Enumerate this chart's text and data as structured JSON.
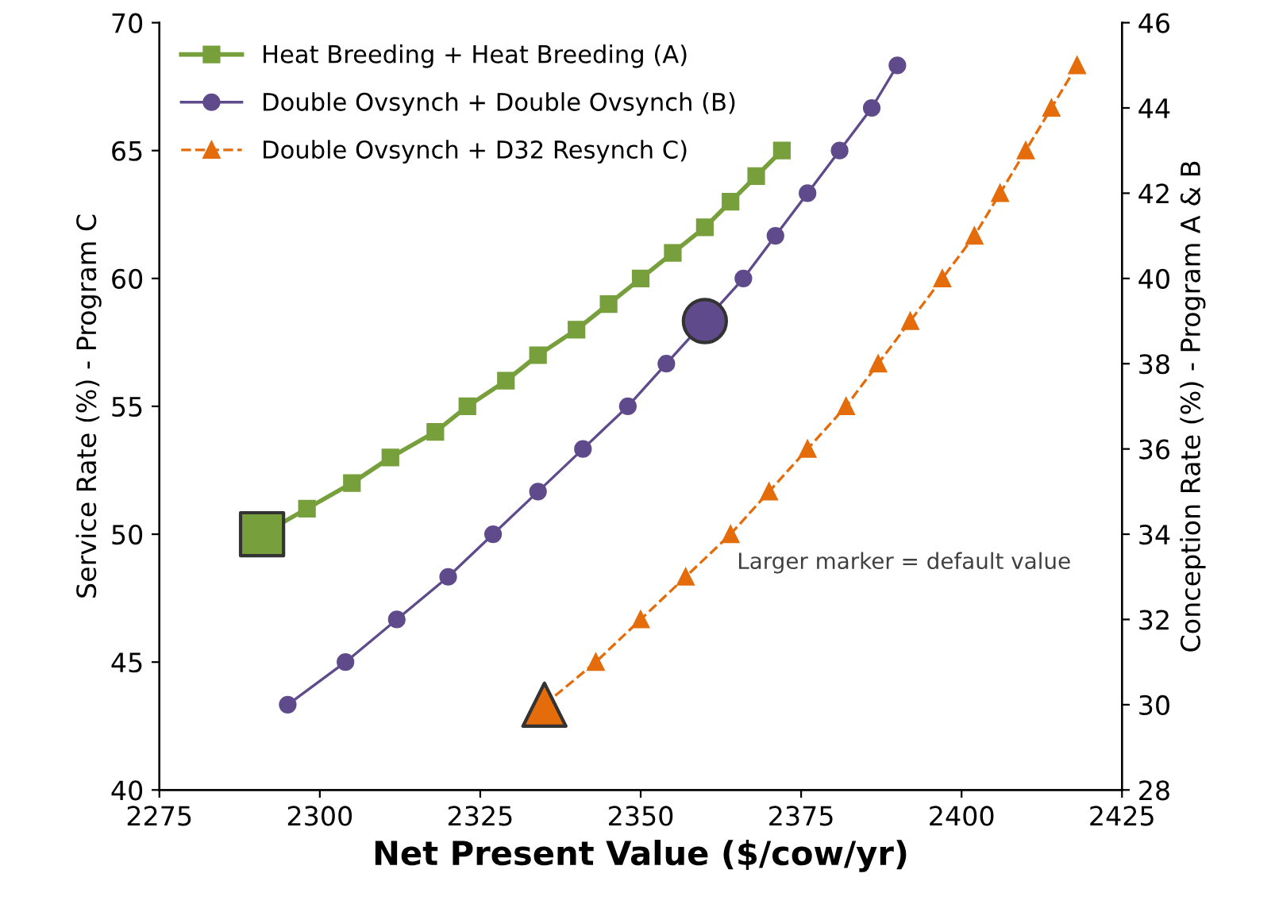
{
  "chart_data": {
    "type": "line",
    "xlabel": "Net Present Value ($/cow/yr)",
    "ylabel": "Service Rate (%) - Program C",
    "y2label": "Conception Rate (%) - Program A & B",
    "xlim": [
      2275,
      2425
    ],
    "xticks": [
      2275,
      2300,
      2325,
      2350,
      2375,
      2400,
      2425
    ],
    "ylim": [
      40,
      70
    ],
    "yticks": [
      40,
      45,
      50,
      55,
      60,
      65,
      70
    ],
    "y2lim": [
      28,
      46
    ],
    "y2ticks": [
      28,
      30,
      32,
      34,
      36,
      38,
      40,
      42,
      44,
      46
    ],
    "grid": false,
    "legend": "top left",
    "annotations": [
      "Larger marker = default value"
    ],
    "series": [
      {
        "name": "Heat Breeding + Heat Breeding (A)",
        "color": "#77a03c",
        "marker": "square",
        "line_style": "solid",
        "x": [
          2291,
          2298,
          2305,
          2311,
          2318,
          2323,
          2329,
          2334,
          2340,
          2345,
          2350,
          2355,
          2360,
          2364,
          2368,
          2372
        ],
        "values": [
          50,
          51,
          52,
          53,
          54,
          55,
          56,
          57,
          58,
          59,
          60,
          61,
          62,
          63,
          64,
          65
        ]
      },
      {
        "name": "Double Ovsynch + Double Ovsynch (B)",
        "color": "#5f4b8b",
        "marker": "circle",
        "line_style": "solid",
        "axis": "y2",
        "x": [
          2295,
          2304,
          2312,
          2320,
          2327,
          2334,
          2341,
          2348,
          2354,
          2360,
          2366,
          2371,
          2376,
          2381,
          2386,
          2390
        ],
        "values": [
          30,
          31,
          32,
          33,
          34,
          35,
          36,
          37,
          38,
          39,
          40,
          41,
          42,
          43,
          44,
          45
        ]
      },
      {
        "name": "Double Ovsynch + D32 Resynch C)",
        "color": "#e46c0a",
        "marker": "triangle",
        "line_style": "dashed",
        "axis": "y2",
        "x": [
          2335,
          2343,
          2350,
          2357,
          2364,
          2370,
          2376,
          2382,
          2387,
          2392,
          2397,
          2402,
          2406,
          2410,
          2414,
          2418
        ],
        "values": [
          30,
          31,
          32,
          33,
          34,
          35,
          36,
          37,
          38,
          39,
          40,
          41,
          42,
          43,
          44,
          45
        ]
      },
      {
        "type": "scatter",
        "color": "#77a03c",
        "marker": "square",
        "x": [
          2291
        ],
        "values": [
          50
        ]
      },
      {
        "type": "scatter",
        "color": "#5f4b8b",
        "marker": "circle",
        "axis": "y2",
        "x": [
          2360
        ],
        "values": [
          39
        ]
      },
      {
        "type": "scatter",
        "color": "#e46c0a",
        "marker": "triangle",
        "axis": "y2",
        "x": [
          2335
        ],
        "values": [
          30
        ]
      }
    ]
  }
}
